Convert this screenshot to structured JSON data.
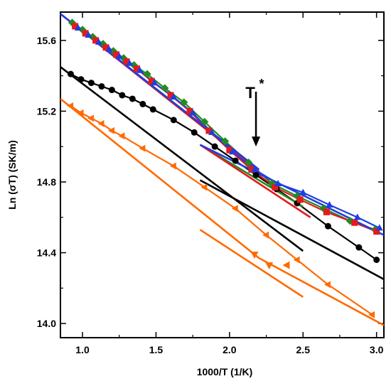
{
  "chart_data": {
    "type": "scatter",
    "xlabel": "1000/T (1/K)",
    "ylabel": "Ln (σT) (SK/m)",
    "xlim": [
      0.85,
      3.05
    ],
    "ylim": [
      13.92,
      15.76
    ],
    "x_ticks": [
      1.0,
      1.5,
      2.0,
      2.5,
      3.0
    ],
    "y_ticks": [
      14.0,
      14.4,
      14.8,
      15.2,
      15.6
    ],
    "x_tick_labels": [
      "1.0",
      "1.5",
      "2.0",
      "2.5",
      "3.0"
    ],
    "y_tick_labels": [
      "14.0",
      "14.4",
      "14.8",
      "15.2",
      "15.6"
    ],
    "grid": false,
    "legend": "none",
    "annotation": {
      "text": "T",
      "superscript": "*",
      "x": 2.18,
      "arrow_from_y": 15.31,
      "arrow_to_y": 15.0
    },
    "series": [
      {
        "color": "#ff6a00",
        "marker": "triangle-left",
        "x": [
          0.92,
          0.99,
          1.06,
          1.13,
          1.2,
          1.27,
          1.41,
          1.62,
          1.83,
          2.04,
          2.25,
          2.46,
          2.67,
          2.97
        ],
        "y": [
          15.23,
          15.19,
          15.16,
          15.13,
          15.09,
          15.06,
          14.99,
          14.89,
          14.77,
          14.65,
          14.5,
          14.36,
          14.22,
          14.05
        ],
        "fit_lines": [
          {
            "x": [
              0.85,
              2.2
            ],
            "y": [
              15.27,
              14.37
            ]
          },
          {
            "x": [
              1.8,
              2.5
            ],
            "y": [
              14.53,
              14.15
            ]
          },
          {
            "x": [
              2.2,
              3.05
            ],
            "y": [
              14.37,
              13.99
            ]
          }
        ],
        "extra_points": [
          {
            "x": 2.27,
            "y": 14.33,
            "marker": "triangle-down"
          },
          {
            "x": 2.17,
            "y": 14.39,
            "marker": "triangle-down"
          },
          {
            "x": 2.39,
            "y": 14.33,
            "marker": "triangle-left"
          }
        ]
      },
      {
        "color": "#000000",
        "marker": "circle",
        "x": [
          0.92,
          0.99,
          1.06,
          1.13,
          1.2,
          1.27,
          1.34,
          1.41,
          1.48,
          1.62,
          1.76,
          1.9,
          2.04,
          2.18,
          2.32,
          2.46,
          2.67,
          2.88,
          3.0
        ],
        "y": [
          15.41,
          15.38,
          15.36,
          15.34,
          15.32,
          15.29,
          15.27,
          15.24,
          15.21,
          15.15,
          15.08,
          15.0,
          14.92,
          14.84,
          14.76,
          14.68,
          14.55,
          14.43,
          14.36
        ],
        "fit_lines": [
          {
            "x": [
              0.85,
              2.5
            ],
            "y": [
              15.45,
              14.41
            ]
          },
          {
            "x": [
              1.8,
              3.05
            ],
            "y": [
              14.81,
              14.25
            ]
          }
        ]
      },
      {
        "color": "#228b22",
        "marker": "diamond",
        "x": [
          0.93,
          1.0,
          1.07,
          1.14,
          1.21,
          1.28,
          1.35,
          1.44,
          1.56,
          1.69,
          1.83,
          1.97,
          2.13,
          2.29,
          2.46,
          2.64,
          2.82,
          2.99
        ],
        "y": [
          15.7,
          15.66,
          15.62,
          15.58,
          15.54,
          15.5,
          15.46,
          15.41,
          15.33,
          15.25,
          15.14,
          15.03,
          14.91,
          14.79,
          14.72,
          14.65,
          14.58,
          14.53
        ],
        "fit_lines": [
          {
            "x": [
              0.85,
              2.2
            ],
            "y": [
              15.75,
              14.87
            ]
          },
          {
            "x": [
              1.8,
              2.5
            ],
            "y": [
              15.01,
              14.66
            ]
          }
        ]
      },
      {
        "color": "#e41a1c",
        "marker": "square",
        "x": [
          0.95,
          1.02,
          1.09,
          1.16,
          1.23,
          1.3,
          1.37,
          1.47,
          1.6,
          1.73,
          1.86,
          2.0,
          2.15,
          2.31,
          2.48,
          2.66,
          2.85,
          3.0
        ],
        "y": [
          15.68,
          15.64,
          15.6,
          15.56,
          15.52,
          15.48,
          15.44,
          15.37,
          15.29,
          15.2,
          15.09,
          14.98,
          14.87,
          14.77,
          14.7,
          14.63,
          14.57,
          14.52
        ],
        "fit_lines": [
          {
            "x": [
              0.85,
              2.2
            ],
            "y": [
              15.75,
              14.86
            ]
          },
          {
            "x": [
              1.8,
              2.55
            ],
            "y": [
              15.01,
              14.6
            ]
          }
        ]
      },
      {
        "color": "#1f3ee0",
        "marker": "triangle-up",
        "x": [
          0.97,
          1.04,
          1.11,
          1.18,
          1.25,
          1.32,
          1.39,
          1.49,
          1.62,
          1.75,
          1.88,
          2.02,
          2.17,
          2.33,
          2.5,
          2.68,
          2.87,
          3.02
        ],
        "y": [
          15.67,
          15.63,
          15.59,
          15.55,
          15.51,
          15.47,
          15.43,
          15.36,
          15.28,
          15.19,
          15.08,
          14.97,
          14.87,
          14.79,
          14.74,
          14.67,
          14.6,
          14.54
        ],
        "fit_lines": [
          {
            "x": [
              0.85,
              2.2
            ],
            "y": [
              15.75,
              14.87
            ]
          },
          {
            "x": [
              1.8,
              3.05
            ],
            "y": [
              15.01,
              14.5
            ]
          }
        ]
      }
    ]
  }
}
